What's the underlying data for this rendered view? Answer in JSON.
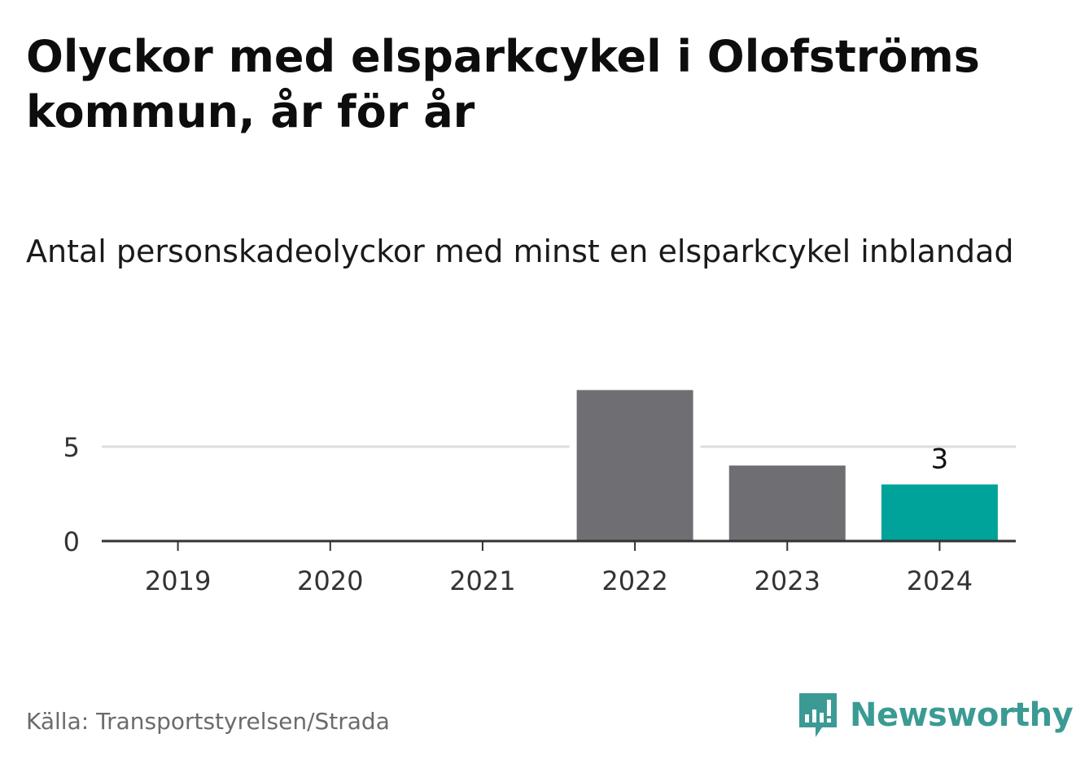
{
  "header": {
    "title": "Olyckor med elsparkcykel i Olofströms kommun, år för år",
    "subtitle": "Antal personskadeolyckor med minst en elsparkcykel inblandad"
  },
  "footer": {
    "source": "Källa: Transportstyrelsen/Strada",
    "brand": "Newsworthy",
    "brand_icon": "newsworthy-logo-icon"
  },
  "colors": {
    "bar_default": "#6f6e73",
    "bar_highlight": "#00a39a",
    "gridline": "#dddddd",
    "axis": "#333333",
    "brand": "#3b9a94"
  },
  "chart_data": {
    "type": "bar",
    "categories": [
      "2019",
      "2020",
      "2021",
      "2022",
      "2023",
      "2024"
    ],
    "values": [
      0,
      0,
      0,
      8,
      4,
      3
    ],
    "highlight_index": 5,
    "data_labels": [
      {
        "index": 5,
        "text": "3"
      }
    ],
    "y_ticks": [
      0,
      5
    ],
    "ylim": [
      0,
      8
    ],
    "grid": true,
    "xlabel": "",
    "ylabel": ""
  }
}
